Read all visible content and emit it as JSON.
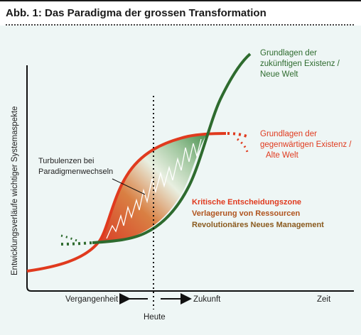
{
  "title": "Abb. 1: Das Paradigma der grossen Transformation",
  "y_axis_label": "Entwicklungsverläufe wichtiger Systemaspekte",
  "x_axis_label": "Zeit",
  "past_label": "Vergangenheit",
  "future_label": "Zukunft",
  "today_label": "Heute",
  "turbulence_label": [
    "Turbulenzen bei",
    "Paradigmenwechseln"
  ],
  "future_basis_label": [
    "Grundlagen der",
    "zukünftigen Existenz /",
    "Neue Welt"
  ],
  "present_basis_label": [
    "Grundlagen der",
    "gegenwärtigen Existenz /",
    "Alte Welt"
  ],
  "critical_zone_label": [
    "Kritische Entscheidungszone",
    "Verlagerung von Ressourcen",
    "Revolutionäres Neues Management"
  ],
  "colors": {
    "green": "#2e6b2e",
    "red": "#e03a1e",
    "background": "#eef6f5"
  }
}
